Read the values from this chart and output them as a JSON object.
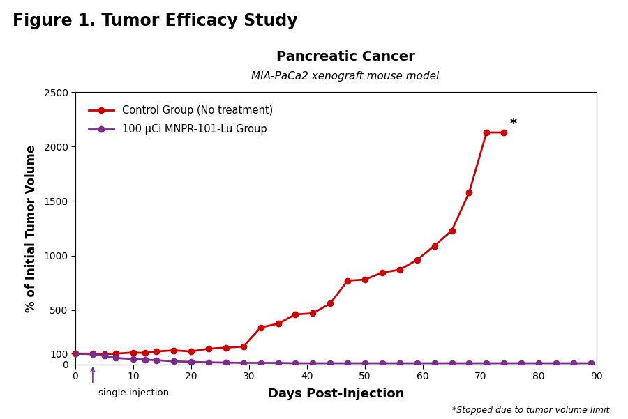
{
  "figure_title": "Figure 1. Tumor Efficacy Study",
  "plot_title": "Pancreatic Cancer",
  "plot_subtitle": "MIA-PaCa2 xenograft mouse model",
  "xlabel": "Days Post-Injection",
  "ylabel": "% of Initial Tumor Volume",
  "xlim": [
    0,
    90
  ],
  "ylim": [
    0,
    2500
  ],
  "yticks": [
    0,
    100,
    500,
    1000,
    1500,
    2000,
    2500
  ],
  "ytick_labels": [
    "0",
    "100",
    "500",
    "1000",
    "1500",
    "2000",
    "2500"
  ],
  "xticks": [
    0,
    10,
    20,
    30,
    40,
    50,
    60,
    70,
    80,
    90
  ],
  "control_x": [
    0,
    3,
    5,
    7,
    10,
    12,
    14,
    17,
    20,
    23,
    26,
    29,
    32,
    35,
    38,
    41,
    44,
    47,
    50,
    53,
    56,
    59,
    62,
    65,
    68,
    71,
    74
  ],
  "control_y": [
    100,
    100,
    95,
    100,
    110,
    105,
    120,
    130,
    120,
    145,
    155,
    165,
    340,
    375,
    460,
    470,
    560,
    770,
    780,
    845,
    870,
    960,
    1090,
    1230,
    1580,
    2130,
    2130
  ],
  "treatment_x": [
    0,
    3,
    5,
    7,
    10,
    12,
    14,
    17,
    20,
    23,
    26,
    29,
    32,
    35,
    38,
    41,
    44,
    47,
    50,
    53,
    56,
    59,
    62,
    65,
    68,
    71,
    74,
    77,
    80,
    83,
    86,
    89
  ],
  "treatment_y": [
    100,
    95,
    80,
    60,
    50,
    45,
    40,
    30,
    25,
    20,
    18,
    15,
    15,
    15,
    12,
    12,
    12,
    12,
    12,
    12,
    12,
    12,
    12,
    12,
    12,
    12,
    12,
    12,
    12,
    12,
    12,
    12
  ],
  "control_color": "#cc0000",
  "treatment_color": "#7b2d8b",
  "control_label": "Control Group (No treatment)",
  "treatment_label": "100 μCi MNPR-101-Lu Group",
  "annotation_text": "*Stopped due to tumor volume limit",
  "injection_label": "single injection",
  "injection_x": 3,
  "marker_size": 6,
  "linewidth": 2.0,
  "background_color": "#ffffff"
}
